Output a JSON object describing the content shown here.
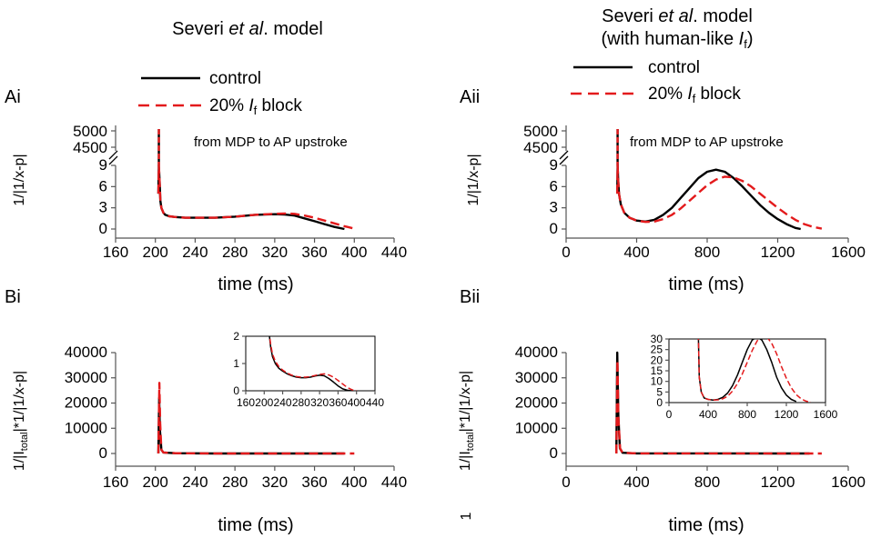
{
  "header": {
    "left_title": "Severi et al. model",
    "left_title_parts": [
      "Severi ",
      "et al",
      ". model"
    ],
    "right_title_line1_parts": [
      "Severi ",
      "et al",
      ". model"
    ],
    "right_title_line2_parts": [
      "(with human-like ",
      "I",
      "f",
      ")"
    ]
  },
  "legend": {
    "control": "control",
    "block_parts": [
      "20% ",
      "I",
      "f",
      " block"
    ]
  },
  "labels": {
    "ai": "Ai",
    "aii": "Aii",
    "bi": "Bi",
    "bii": "Bii",
    "note": "from MDP to AP upstroke",
    "ylab_a": "1/|1/x-p|",
    "ylab_b_parts": [
      "1/|I",
      "total",
      "|*1/|1/x-p|"
    ],
    "xlab": "time (ms)",
    "stray": "1"
  },
  "colors": {
    "control": "#000000",
    "block": "#e31a1c"
  },
  "chart_data": [
    {
      "id": "Ai",
      "type": "line",
      "title": "Severi et al. model",
      "xlabel": "time (ms)",
      "ylabel": "1/|1/x-p|",
      "xlim": [
        160,
        440
      ],
      "xticks": [
        160,
        200,
        240,
        280,
        320,
        360,
        400,
        440
      ],
      "ylim_lower": [
        0,
        9
      ],
      "yticks_lower": [
        0,
        3,
        6,
        9
      ],
      "ylim_upper": [
        4500,
        5000
      ],
      "yticks_upper": [
        4500,
        5000
      ],
      "annotation": "from MDP to AP upstroke",
      "series": [
        {
          "name": "control",
          "color": "#000000",
          "dash": "solid",
          "x": [
            203,
            203.5,
            204,
            204.5,
            205,
            206,
            208,
            210,
            214,
            220,
            230,
            240,
            260,
            280,
            300,
            320,
            330,
            340,
            350,
            360,
            370,
            380,
            390
          ],
          "y": [
            5,
            9,
            7.5,
            6,
            4,
            3,
            2.3,
            2,
            1.8,
            1.7,
            1.6,
            1.6,
            1.6,
            1.75,
            2,
            2.1,
            2.05,
            1.9,
            1.5,
            1.1,
            0.7,
            0.3,
            0
          ]
        },
        {
          "name": "20% If block",
          "color": "#e31a1c",
          "dash": "dashed",
          "x": [
            203,
            203.5,
            204,
            204.5,
            205,
            206,
            208,
            210,
            214,
            220,
            230,
            240,
            260,
            280,
            300,
            320,
            330,
            340,
            350,
            360,
            370,
            380,
            390,
            400
          ],
          "y": [
            5,
            9,
            7.5,
            6,
            4,
            3,
            2.3,
            2,
            1.8,
            1.7,
            1.6,
            1.6,
            1.6,
            1.75,
            2,
            2.15,
            2.2,
            2.15,
            1.9,
            1.6,
            1.2,
            0.8,
            0.4,
            0.05
          ]
        }
      ]
    },
    {
      "id": "Aii",
      "type": "line",
      "title": "Severi et al. model (with human-like If)",
      "xlabel": "time (ms)",
      "ylabel": "1/|1/x-p|",
      "xlim": [
        0,
        1600
      ],
      "xticks": [
        0,
        400,
        800,
        1200,
        1600
      ],
      "ylim_lower": [
        0,
        9
      ],
      "yticks_lower": [
        0,
        3,
        6,
        9
      ],
      "ylim_upper": [
        4500,
        5000
      ],
      "yticks_upper": [
        4500,
        5000
      ],
      "annotation": "from MDP to AP upstroke",
      "series": [
        {
          "name": "control",
          "color": "#000000",
          "dash": "solid",
          "x": [
            290,
            292,
            295,
            300,
            310,
            330,
            360,
            400,
            450,
            500,
            550,
            600,
            650,
            700,
            750,
            800,
            850,
            900,
            950,
            1000,
            1050,
            1100,
            1150,
            1200,
            1250,
            1300,
            1330
          ],
          "y": [
            5,
            9,
            7,
            5,
            3.5,
            2.3,
            1.6,
            1.2,
            1.05,
            1.3,
            2,
            3,
            4.4,
            5.8,
            7.2,
            8.1,
            8.4,
            8.1,
            7.2,
            6,
            4.7,
            3.4,
            2.3,
            1.4,
            0.7,
            0.15,
            0
          ]
        },
        {
          "name": "20% If block",
          "color": "#e31a1c",
          "dash": "dashed",
          "x": [
            290,
            292,
            295,
            300,
            310,
            330,
            360,
            400,
            450,
            500,
            550,
            600,
            650,
            700,
            750,
            800,
            850,
            900,
            950,
            1000,
            1050,
            1100,
            1150,
            1200,
            1250,
            1300,
            1350,
            1400,
            1450
          ],
          "y": [
            5,
            9,
            7,
            5,
            3.5,
            2.3,
            1.6,
            1.2,
            1.0,
            1.05,
            1.4,
            2,
            2.9,
            4,
            5.1,
            6.2,
            7,
            7.4,
            7.3,
            6.8,
            6,
            5,
            4,
            3,
            2.1,
            1.3,
            0.7,
            0.3,
            0.05
          ]
        }
      ]
    },
    {
      "id": "Bi",
      "type": "line",
      "xlabel": "time (ms)",
      "ylabel": "1/|Itotal|*1/|1/x-p|",
      "xlim": [
        160,
        440
      ],
      "xticks": [
        160,
        200,
        240,
        280,
        320,
        360,
        400,
        440
      ],
      "ylim": [
        0,
        40000
      ],
      "yticks": [
        0,
        10000,
        20000,
        30000,
        40000
      ],
      "series": [
        {
          "name": "control",
          "color": "#000000",
          "dash": "solid",
          "x": [
            203,
            203.8,
            204.5,
            206,
            208,
            220,
            260,
            300,
            340,
            370,
            390
          ],
          "y": [
            0,
            22000,
            10000,
            1500,
            400,
            100,
            10,
            10,
            10,
            5,
            0
          ]
        },
        {
          "name": "20% If block",
          "color": "#e31a1c",
          "dash": "dashed",
          "x": [
            203,
            204,
            204.8,
            206,
            208,
            220,
            260,
            300,
            340,
            370,
            400
          ],
          "y": [
            0,
            28000,
            12000,
            1500,
            400,
            100,
            10,
            10,
            10,
            5,
            0
          ]
        }
      ],
      "inset": {
        "xlim": [
          160,
          440
        ],
        "xticks": [
          160,
          200,
          240,
          280,
          320,
          360,
          400,
          440
        ],
        "ylim": [
          0,
          2
        ],
        "yticks": [
          0,
          1,
          2
        ],
        "series": [
          {
            "name": "control",
            "color": "#000000",
            "dash": "solid",
            "x": [
              210,
              214,
              218,
              224,
              232,
              240,
              250,
              260,
              270,
              280,
              290,
              300,
              310,
              320,
              330,
              340,
              350,
              360,
              370,
              380,
              390
            ],
            "y": [
              2.2,
              1.6,
              1.25,
              1.0,
              0.82,
              0.72,
              0.62,
              0.55,
              0.5,
              0.48,
              0.48,
              0.5,
              0.54,
              0.57,
              0.55,
              0.45,
              0.32,
              0.18,
              0.07,
              0.02,
              0
            ]
          },
          {
            "name": "20% If block",
            "color": "#e31a1c",
            "dash": "dashed",
            "x": [
              210,
              214,
              218,
              224,
              232,
              240,
              250,
              260,
              270,
              280,
              290,
              300,
              310,
              320,
              330,
              340,
              350,
              360,
              370,
              380,
              390,
              400
            ],
            "y": [
              2.2,
              1.7,
              1.35,
              1.08,
              0.88,
              0.76,
              0.65,
              0.57,
              0.52,
              0.5,
              0.5,
              0.52,
              0.56,
              0.6,
              0.62,
              0.58,
              0.5,
              0.38,
              0.25,
              0.12,
              0.04,
              0
            ]
          }
        ]
      }
    },
    {
      "id": "Bii",
      "type": "line",
      "xlabel": "time (ms)",
      "ylabel": "1/|Itotal|*1/|1/x-p|",
      "xlim": [
        0,
        1600
      ],
      "xticks": [
        0,
        400,
        800,
        1200,
        1600
      ],
      "ylim": [
        0,
        40000
      ],
      "yticks": [
        0,
        10000,
        20000,
        30000,
        40000
      ],
      "series": [
        {
          "name": "control",
          "color": "#000000",
          "dash": "solid",
          "x": [
            285,
            290,
            296,
            305,
            320,
            400,
            800,
            1200,
            1380
          ],
          "y": [
            0,
            40000,
            15000,
            2000,
            300,
            50,
            30,
            10,
            0
          ]
        },
        {
          "name": "20% If block",
          "color": "#e31a1c",
          "dash": "dashed",
          "x": [
            285,
            291,
            297,
            306,
            320,
            400,
            800,
            1200,
            1450
          ],
          "y": [
            0,
            37000,
            14000,
            2000,
            300,
            50,
            30,
            10,
            0
          ]
        }
      ],
      "inset": {
        "xlim": [
          0,
          1600
        ],
        "xticks": [
          0,
          400,
          800,
          1200,
          1600
        ],
        "ylim": [
          0,
          30
        ],
        "yticks": [
          0,
          5,
          10,
          15,
          20,
          25,
          30
        ],
        "series": [
          {
            "name": "control",
            "color": "#000000",
            "dash": "solid",
            "x": [
              300,
              310,
              330,
              360,
              400,
              450,
              500,
              550,
              600,
              650,
              700,
              750,
              800,
              850,
              900,
              950,
              1000,
              1050,
              1100,
              1150,
              1200,
              1250,
              1300
            ],
            "y": [
              32,
              12,
              5,
              2.2,
              1.5,
              1.2,
              1.5,
              2.5,
              4.5,
              8,
              13,
              19,
              25,
              29.5,
              31,
              29.5,
              25,
              19,
              12,
              7,
              3.5,
              1.5,
              0.5
            ]
          },
          {
            "name": "20% If block",
            "color": "#e31a1c",
            "dash": "dashed",
            "x": [
              300,
              310,
              330,
              360,
              400,
              450,
              500,
              550,
              600,
              650,
              700,
              750,
              800,
              850,
              900,
              950,
              1000,
              1050,
              1100,
              1150,
              1200,
              1250,
              1300,
              1350,
              1400,
              1450
            ],
            "y": [
              32,
              12,
              5,
              2.2,
              1.5,
              1.2,
              1.3,
              1.8,
              3,
              5.5,
              9,
              13.5,
              19,
              24.5,
              29,
              31.5,
              31,
              28,
              23,
              17,
              11.5,
              7,
              3.8,
              1.8,
              0.7,
              0.2
            ]
          }
        ]
      }
    }
  ]
}
